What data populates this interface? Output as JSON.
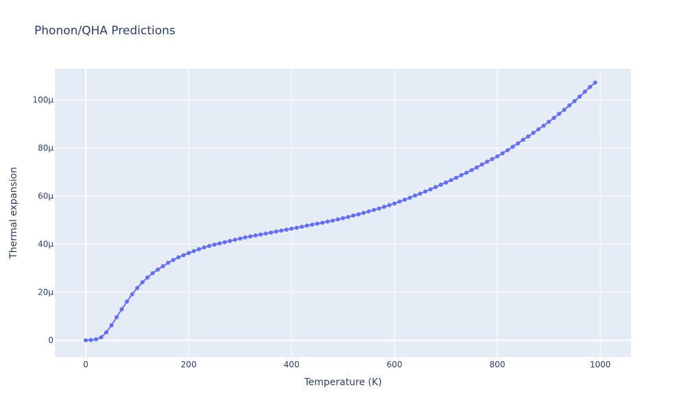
{
  "chart_data": {
    "type": "line",
    "title": "Phonon/QHA Predictions",
    "xlabel": "Temperature (K)",
    "ylabel": "Thermal expansion",
    "xlim": [
      -60,
      1060
    ],
    "ylim": [
      -7e-06,
      0.000113
    ],
    "x_ticks": [
      0,
      200,
      400,
      600,
      800,
      1000
    ],
    "x_tick_labels": [
      "0",
      "200",
      "400",
      "600",
      "800",
      "1000"
    ],
    "y_ticks": [
      0,
      2e-05,
      4e-05,
      6e-05,
      8e-05,
      0.0001
    ],
    "y_tick_labels": [
      "0",
      "20μ",
      "40μ",
      "60μ",
      "80μ",
      "100μ"
    ],
    "grid": true,
    "series": [
      {
        "color": "#636efa",
        "mode": "lines+markers",
        "x": [
          0,
          10,
          20,
          30,
          40,
          50,
          60,
          70,
          80,
          90,
          100,
          110,
          120,
          130,
          140,
          150,
          160,
          170,
          180,
          190,
          200,
          210,
          220,
          230,
          240,
          250,
          260,
          270,
          280,
          290,
          300,
          310,
          320,
          330,
          340,
          350,
          360,
          370,
          380,
          390,
          400,
          410,
          420,
          430,
          440,
          450,
          460,
          470,
          480,
          490,
          500,
          510,
          520,
          530,
          540,
          550,
          560,
          570,
          580,
          590,
          600,
          610,
          620,
          630,
          640,
          650,
          660,
          670,
          680,
          690,
          700,
          710,
          720,
          730,
          740,
          750,
          760,
          770,
          780,
          790,
          800,
          810,
          820,
          830,
          840,
          850,
          860,
          870,
          880,
          890,
          900,
          910,
          920,
          930,
          940,
          950,
          960,
          970,
          980,
          990
        ],
        "y": [
          0,
          1e-07,
          4e-07,
          1.2e-06,
          3.3e-06,
          6.2e-06,
          9.6e-06,
          1.29e-05,
          1.61e-05,
          1.91e-05,
          2.17e-05,
          2.41e-05,
          2.61e-05,
          2.79e-05,
          2.94e-05,
          3.08e-05,
          3.22e-05,
          3.34e-05,
          3.45e-05,
          3.54e-05,
          3.63e-05,
          3.71e-05,
          3.79e-05,
          3.86e-05,
          3.92e-05,
          3.98e-05,
          4.03e-05,
          4.08e-05,
          4.13e-05,
          4.18e-05,
          4.23e-05,
          4.28e-05,
          4.32e-05,
          4.36e-05,
          4.4e-05,
          4.44e-05,
          4.48e-05,
          4.52e-05,
          4.56e-05,
          4.6e-05,
          4.64e-05,
          4.68e-05,
          4.72e-05,
          4.77e-05,
          4.81e-05,
          4.85e-05,
          4.89e-05,
          4.94e-05,
          4.98e-05,
          5.03e-05,
          5.08e-05,
          5.13e-05,
          5.19e-05,
          5.24e-05,
          5.3e-05,
          5.36e-05,
          5.42e-05,
          5.48e-05,
          5.55e-05,
          5.62e-05,
          5.69e-05,
          5.77e-05,
          5.85e-05,
          5.93e-05,
          6.02e-05,
          6.1e-05,
          6.19e-05,
          6.28e-05,
          6.37e-05,
          6.47e-05,
          6.56e-05,
          6.66e-05,
          6.76e-05,
          6.87e-05,
          6.97e-05,
          7.08e-05,
          7.19e-05,
          7.31e-05,
          7.43e-05,
          7.54e-05,
          7.65e-05,
          7.78e-05,
          7.91e-05,
          8.05e-05,
          8.19e-05,
          8.34e-05,
          8.48e-05,
          8.63e-05,
          8.78e-05,
          8.93e-05,
          9.09e-05,
          9.25e-05,
          9.42e-05,
          9.59e-05,
          9.77e-05,
          9.95e-05,
          0.0001014,
          0.0001034,
          0.0001054,
          0.0001072
        ]
      }
    ]
  }
}
